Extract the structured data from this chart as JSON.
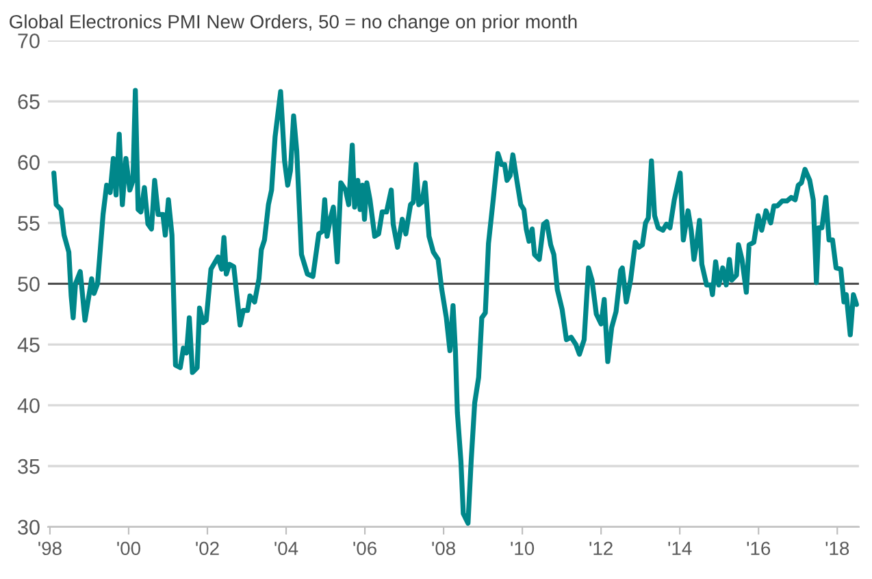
{
  "chart_data": {
    "type": "line",
    "title": "Global Electronics PMI New Orders, 50 = no change on prior month",
    "series": [
      {
        "color": "#00878a",
        "x": [
          1998.1,
          1998.16,
          1998.28,
          1998.36,
          1998.48,
          1998.54,
          1998.59,
          1998.65,
          1998.77,
          1998.89,
          1999.06,
          1999.12,
          1999.21,
          1999.35,
          1999.44,
          1999.53,
          1999.61,
          1999.68,
          1999.76,
          1999.84,
          1999.93,
          2000.03,
          2000.11,
          2000.17,
          2000.24,
          2000.31,
          2000.4,
          2000.49,
          2000.58,
          2000.66,
          2000.75,
          2000.87,
          2000.93,
          2001.01,
          2001.1,
          2001.19,
          2001.31,
          2001.39,
          2001.47,
          2001.54,
          2001.62,
          2001.74,
          2001.8,
          2001.89,
          2001.97,
          2002.09,
          2002.27,
          2002.36,
          2002.42,
          2002.48,
          2002.56,
          2002.67,
          2002.83,
          2002.91,
          2003.02,
          2003.08,
          2003.2,
          2003.31,
          2003.37,
          2003.45,
          2003.55,
          2003.63,
          2003.72,
          2003.86,
          2003.96,
          2004.04,
          2004.11,
          2004.19,
          2004.27,
          2004.39,
          2004.54,
          2004.68,
          2004.83,
          2004.92,
          2004.98,
          2005.04,
          2005.12,
          2005.2,
          2005.3,
          2005.39,
          2005.51,
          2005.59,
          2005.68,
          2005.74,
          2005.82,
          2005.88,
          2005.94,
          2005.99,
          2006.05,
          2006.13,
          2006.25,
          2006.35,
          2006.44,
          2006.55,
          2006.67,
          2006.72,
          2006.83,
          2006.95,
          2007.04,
          2007.16,
          2007.23,
          2007.3,
          2007.37,
          2007.45,
          2007.53,
          2007.63,
          2007.74,
          2007.86,
          2007.95,
          2008.07,
          2008.16,
          2008.24,
          2008.3,
          2008.35,
          2008.44,
          2008.5,
          2008.62,
          2008.7,
          2008.79,
          2008.89,
          2008.97,
          2009.06,
          2009.14,
          2009.26,
          2009.38,
          2009.47,
          2009.55,
          2009.61,
          2009.69,
          2009.76,
          2009.86,
          2009.96,
          2010.04,
          2010.1,
          2010.17,
          2010.25,
          2010.31,
          2010.43,
          2010.54,
          2010.62,
          2010.72,
          2010.8,
          2010.89,
          2011.01,
          2011.12,
          2011.24,
          2011.36,
          2011.45,
          2011.57,
          2011.68,
          2011.77,
          2011.88,
          2012.0,
          2012.08,
          2012.17,
          2012.27,
          2012.38,
          2012.5,
          2012.54,
          2012.64,
          2012.75,
          2012.87,
          2012.96,
          2013.05,
          2013.13,
          2013.2,
          2013.28,
          2013.36,
          2013.45,
          2013.57,
          2013.66,
          2013.75,
          2013.86,
          2014.01,
          2014.09,
          2014.21,
          2014.29,
          2014.36,
          2014.44,
          2014.5,
          2014.56,
          2014.68,
          2014.79,
          2014.83,
          2014.91,
          2014.99,
          2015.09,
          2015.18,
          2015.26,
          2015.32,
          2015.44,
          2015.49,
          2015.58,
          2015.69,
          2015.76,
          2015.88,
          2015.99,
          2016.08,
          2016.19,
          2016.31,
          2016.39,
          2016.48,
          2016.6,
          2016.72,
          2016.83,
          2016.93,
          2017.01,
          2017.09,
          2017.18,
          2017.3,
          2017.39,
          2017.47,
          2017.53,
          2017.61,
          2017.71,
          2017.79,
          2017.88,
          2017.97,
          2018.09,
          2018.17,
          2018.23,
          2018.33,
          2018.41,
          2018.49
        ],
        "values": [
          59.1,
          56.5,
          56.1,
          54,
          52.6,
          49,
          47.2,
          50,
          51,
          47,
          50.4,
          49.2,
          50,
          55.7,
          58.1,
          57.5,
          60.3,
          57.3,
          62.3,
          56.5,
          60.3,
          57.7,
          58.5,
          65.9,
          56.1,
          55.9,
          57.9,
          54.9,
          54.5,
          58.5,
          55.7,
          55.7,
          54,
          56.9,
          54,
          43.3,
          43.1,
          44.7,
          44.3,
          47.2,
          42.7,
          43.1,
          48,
          46.8,
          47,
          51.2,
          52.2,
          51.2,
          53.8,
          50.8,
          51.6,
          51.4,
          46.6,
          47.8,
          47.8,
          49,
          48.5,
          50.4,
          52.8,
          53.6,
          56.5,
          57.7,
          62.1,
          65.8,
          60.1,
          58.1,
          59.3,
          63.8,
          60.9,
          52.4,
          50.8,
          50.6,
          54.1,
          54.3,
          56.9,
          53.9,
          55.3,
          56.3,
          51.8,
          58.3,
          57.7,
          56.5,
          61.4,
          56.3,
          58.5,
          56.1,
          58.1,
          55.3,
          58.3,
          56.9,
          53.9,
          54.1,
          55.9,
          55.9,
          57.7,
          54.9,
          53,
          55.3,
          54.1,
          56.5,
          56.7,
          59.8,
          56.5,
          56.7,
          58.3,
          53.9,
          52.6,
          52,
          49.6,
          47.2,
          44.5,
          48.2,
          44.5,
          39.4,
          35.4,
          31.1,
          30.3,
          35.4,
          40.2,
          42.3,
          47.2,
          47.6,
          53.3,
          56.9,
          60.7,
          59.8,
          59.8,
          58.5,
          58.9,
          60.6,
          58.5,
          56.5,
          56.1,
          54.5,
          53.5,
          54.5,
          52.4,
          52,
          54.9,
          55.1,
          53.2,
          52.4,
          49.5,
          47.9,
          45.4,
          45.6,
          45,
          44.2,
          45.4,
          51.3,
          50.3,
          47.5,
          46.7,
          48.7,
          43.6,
          46.4,
          47.7,
          51.1,
          51.3,
          48.5,
          50.3,
          53.4,
          53,
          53.2,
          55,
          55.4,
          60.1,
          55.6,
          54.6,
          54.4,
          54.9,
          54.6,
          56.9,
          59.1,
          53.6,
          56,
          54.4,
          52,
          53.6,
          55.2,
          51.6,
          49.9,
          49.9,
          49.1,
          51.8,
          49.9,
          51.3,
          49.9,
          52,
          50.3,
          50.7,
          53.2,
          52,
          49.3,
          53.2,
          53.4,
          55.6,
          54.4,
          56,
          55,
          56.4,
          56.4,
          56.8,
          56.8,
          57.1,
          56.9,
          58.1,
          58.3,
          59.4,
          58.5,
          56.9,
          50.1,
          54.6,
          54.6,
          57.1,
          53.6,
          53.6,
          51.3,
          51.2,
          48.5,
          49.1,
          45.8,
          49.1,
          48.3
        ]
      }
    ],
    "xlim": [
      1997.95,
      2018.55
    ],
    "xticks": [
      {
        "value": 1998,
        "label": "'98"
      },
      {
        "value": 2000,
        "label": "'00"
      },
      {
        "value": 2002,
        "label": "'02"
      },
      {
        "value": 2004,
        "label": "'04"
      },
      {
        "value": 2006,
        "label": "'06"
      },
      {
        "value": 2008,
        "label": "'08"
      },
      {
        "value": 2010,
        "label": "'10"
      },
      {
        "value": 2012,
        "label": "'12"
      },
      {
        "value": 2014,
        "label": "'14"
      },
      {
        "value": 2016,
        "label": "'16"
      },
      {
        "value": 2018,
        "label": "'18"
      }
    ],
    "ylim": [
      30,
      70
    ],
    "yticks": [
      30,
      35,
      40,
      45,
      50,
      55,
      60,
      65,
      70
    ],
    "grid": "y",
    "ref_lines": [
      {
        "axis": "y",
        "value": 50,
        "color": "#404040"
      }
    ]
  }
}
